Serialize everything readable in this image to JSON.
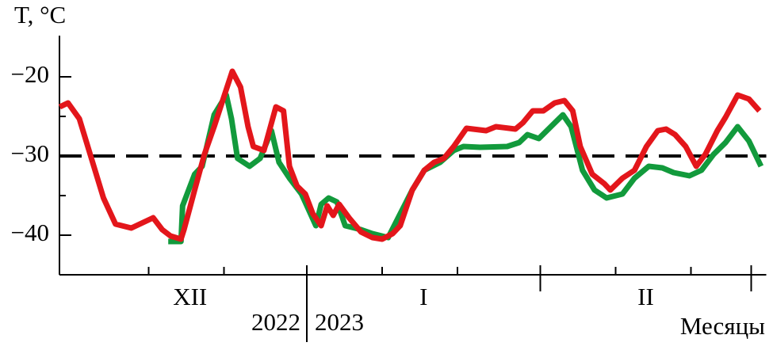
{
  "chart_data": {
    "type": "line",
    "y_label": "T, °C",
    "x_label": "Месяцы",
    "xlim": [
      -2,
      92
    ],
    "ylim": [
      -45,
      -14.8
    ],
    "yticks": [
      {
        "value": -20,
        "label": "−20"
      },
      {
        "value": -30,
        "label": "−30"
      },
      {
        "value": -40,
        "label": "−40"
      }
    ],
    "y_minor_ticks": [
      -25,
      -35
    ],
    "xticks": [
      10,
      20,
      41,
      51,
      72,
      82
    ],
    "x_major_ticks": [
      31,
      62,
      90
    ],
    "month_labels": [
      "XII",
      "I",
      "II"
    ],
    "year_labels": [
      "2022",
      "2023"
    ],
    "reference_line": -30,
    "series": [
      {
        "color": "#129a3c",
        "x": [
          12.6,
          14.3,
          14.5,
          16.1,
          17.1,
          18.7,
          20.3,
          21.0,
          21.8,
          23.4,
          24.8,
          26.3,
          27.3,
          28.7,
          30.3,
          32.2,
          32.9,
          33.9,
          35.0,
          36.1,
          38.2,
          39.7,
          41.8,
          43.4,
          45.0,
          46.6,
          48.7,
          50.5,
          51.8,
          54.0,
          57.6,
          59.2,
          60.3,
          61.8,
          63.4,
          65.0,
          66.1,
          67.6,
          69.2,
          70.8,
          72.9,
          74.5,
          76.4,
          78.2,
          79.7,
          81.8,
          83.4,
          85.0,
          86.6,
          88.2,
          89.7,
          91.3
        ],
        "values": [
          -40.8,
          -40.8,
          -36.3,
          -32.3,
          -31.3,
          -24.8,
          -22.3,
          -25.3,
          -30.3,
          -31.3,
          -30.3,
          -26.8,
          -30.8,
          -32.8,
          -34.8,
          -38.8,
          -36.1,
          -35.3,
          -35.8,
          -38.8,
          -39.3,
          -39.8,
          -40.3,
          -37.3,
          -34.3,
          -31.8,
          -30.8,
          -29.3,
          -28.8,
          -28.9,
          -28.8,
          -28.3,
          -27.3,
          -27.8,
          -26.3,
          -24.8,
          -26.3,
          -31.8,
          -34.3,
          -35.3,
          -34.8,
          -32.8,
          -31.3,
          -31.5,
          -32.1,
          -32.5,
          -31.8,
          -29.8,
          -28.3,
          -26.3,
          -28.1,
          -31.3
        ]
      },
      {
        "color": "#e3161b",
        "x": [
          -1.8,
          -0.7,
          0.8,
          2.4,
          4.0,
          5.6,
          7.7,
          10.6,
          11.8,
          12.9,
          14.3,
          14.7,
          16.1,
          17.4,
          18.7,
          19.9,
          21.1,
          22.2,
          23.2,
          23.9,
          25.3,
          26.9,
          27.9,
          28.7,
          29.7,
          30.8,
          31.8,
          32.9,
          33.7,
          34.5,
          35.3,
          36.6,
          38.2,
          39.7,
          41.0,
          42.4,
          43.4,
          45.0,
          46.6,
          47.9,
          49.2,
          50.5,
          52.2,
          54.8,
          56.1,
          58.7,
          59.7,
          61.0,
          62.4,
          63.9,
          65.2,
          66.3,
          67.3,
          68.9,
          70.5,
          71.3,
          72.9,
          74.5,
          76.1,
          77.6,
          78.7,
          79.9,
          81.3,
          82.7,
          83.9,
          85.5,
          86.6,
          88.2,
          89.7,
          91.1
        ],
        "values": [
          -23.8,
          -23.3,
          -25.3,
          -30.3,
          -35.3,
          -38.6,
          -39.1,
          -37.8,
          -39.3,
          -40.1,
          -40.5,
          -39.3,
          -34.3,
          -29.8,
          -26.3,
          -22.8,
          -19.3,
          -21.3,
          -26.3,
          -28.8,
          -29.3,
          -23.8,
          -24.3,
          -31.3,
          -33.8,
          -34.8,
          -37.3,
          -38.8,
          -36.3,
          -37.5,
          -36.1,
          -37.8,
          -39.6,
          -40.3,
          -40.5,
          -39.8,
          -38.8,
          -34.3,
          -31.8,
          -30.8,
          -30.3,
          -28.8,
          -26.5,
          -26.8,
          -26.3,
          -26.6,
          -25.8,
          -24.3,
          -24.3,
          -23.3,
          -23.0,
          -24.3,
          -28.8,
          -32.3,
          -33.5,
          -34.3,
          -32.8,
          -31.8,
          -28.8,
          -26.8,
          -26.6,
          -27.3,
          -28.8,
          -31.3,
          -29.8,
          -26.8,
          -25.1,
          -22.3,
          -22.8,
          -24.3
        ]
      }
    ]
  }
}
